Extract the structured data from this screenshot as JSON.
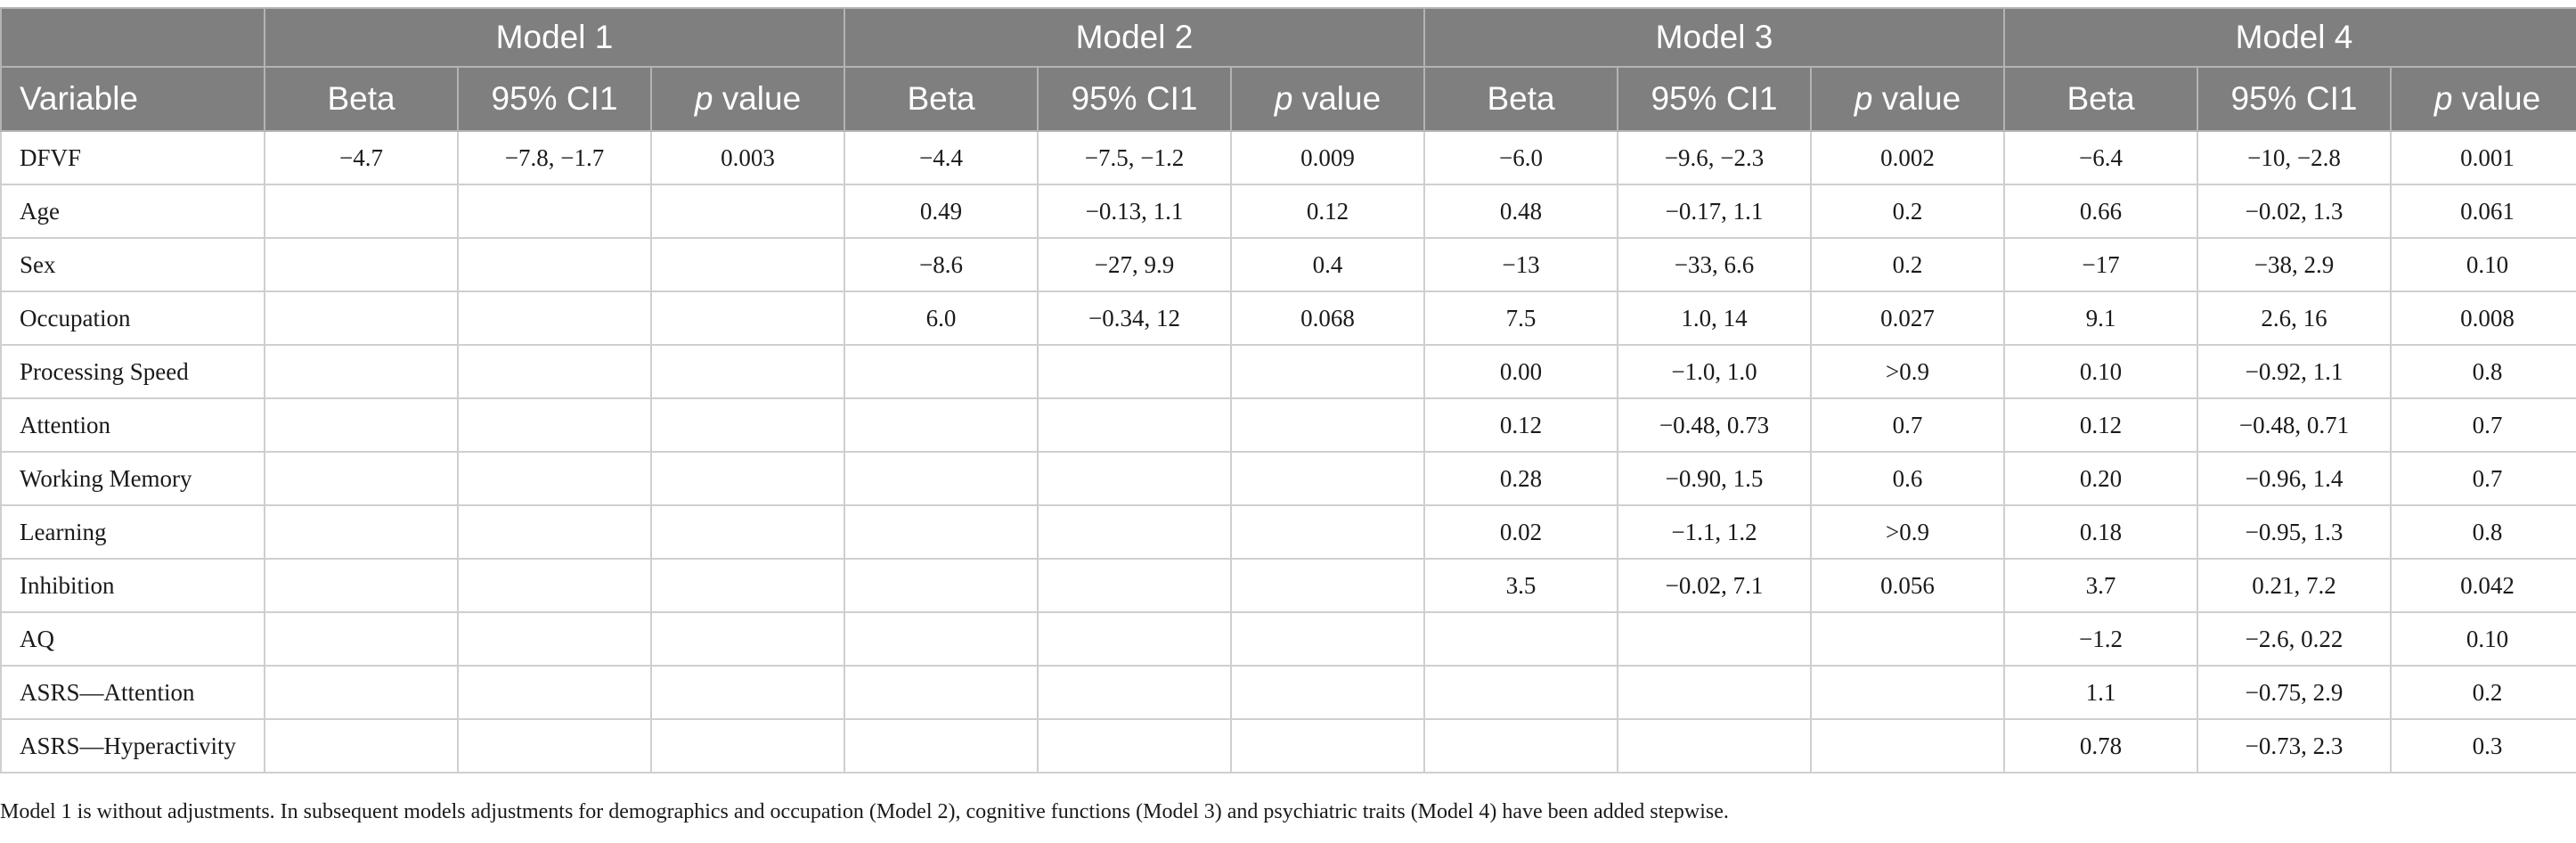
{
  "header": {
    "variable": "Variable",
    "models": [
      "Model 1",
      "Model 2",
      "Model 3",
      "Model 4"
    ],
    "beta": "Beta",
    "ci": "95% CI1",
    "p_italic": "p",
    "p_rest": " value"
  },
  "rows": [
    {
      "variable": "DFVF",
      "cells": [
        "−4.7",
        "−7.8, −1.7",
        "0.003",
        "−4.4",
        "−7.5, −1.2",
        "0.009",
        "−6.0",
        "−9.6, −2.3",
        "0.002",
        "−6.4",
        "−10, −2.8",
        "0.001"
      ]
    },
    {
      "variable": "Age",
      "cells": [
        "",
        "",
        "",
        "0.49",
        "−0.13, 1.1",
        "0.12",
        "0.48",
        "−0.17, 1.1",
        "0.2",
        "0.66",
        "−0.02, 1.3",
        "0.061"
      ]
    },
    {
      "variable": "Sex",
      "cells": [
        "",
        "",
        "",
        "−8.6",
        "−27, 9.9",
        "0.4",
        "−13",
        "−33, 6.6",
        "0.2",
        "−17",
        "−38, 2.9",
        "0.10"
      ]
    },
    {
      "variable": "Occupation",
      "cells": [
        "",
        "",
        "",
        "6.0",
        "−0.34, 12",
        "0.068",
        "7.5",
        "1.0, 14",
        "0.027",
        "9.1",
        "2.6, 16",
        "0.008"
      ]
    },
    {
      "variable": "Processing Speed",
      "cells": [
        "",
        "",
        "",
        "",
        "",
        "",
        "0.00",
        "−1.0, 1.0",
        ">0.9",
        "0.10",
        "−0.92, 1.1",
        "0.8"
      ]
    },
    {
      "variable": "Attention",
      "cells": [
        "",
        "",
        "",
        "",
        "",
        "",
        "0.12",
        "−0.48, 0.73",
        "0.7",
        "0.12",
        "−0.48, 0.71",
        "0.7"
      ]
    },
    {
      "variable": "Working Memory",
      "cells": [
        "",
        "",
        "",
        "",
        "",
        "",
        "0.28",
        "−0.90, 1.5",
        "0.6",
        "0.20",
        "−0.96, 1.4",
        "0.7"
      ]
    },
    {
      "variable": "Learning",
      "cells": [
        "",
        "",
        "",
        "",
        "",
        "",
        "0.02",
        "−1.1, 1.2",
        ">0.9",
        "0.18",
        "−0.95, 1.3",
        "0.8"
      ]
    },
    {
      "variable": "Inhibition",
      "cells": [
        "",
        "",
        "",
        "",
        "",
        "",
        "3.5",
        "−0.02, 7.1",
        "0.056",
        "3.7",
        "0.21, 7.2",
        "0.042"
      ]
    },
    {
      "variable": "AQ",
      "cells": [
        "",
        "",
        "",
        "",
        "",
        "",
        "",
        "",
        "",
        "−1.2",
        "−2.6, 0.22",
        "0.10"
      ]
    },
    {
      "variable": "ASRS—Attention",
      "cells": [
        "",
        "",
        "",
        "",
        "",
        "",
        "",
        "",
        "",
        "1.1",
        "−0.75, 2.9",
        "0.2"
      ]
    },
    {
      "variable": "ASRS—Hyperactivity",
      "cells": [
        "",
        "",
        "",
        "",
        "",
        "",
        "",
        "",
        "",
        "0.78",
        "−0.73, 2.3",
        "0.3"
      ]
    }
  ],
  "footnote": "Model 1 is without adjustments. In subsequent models adjustments for demographics and occupation (Model 2), cognitive functions (Model 3) and psychiatric traits (Model 4) have been added stepwise."
}
